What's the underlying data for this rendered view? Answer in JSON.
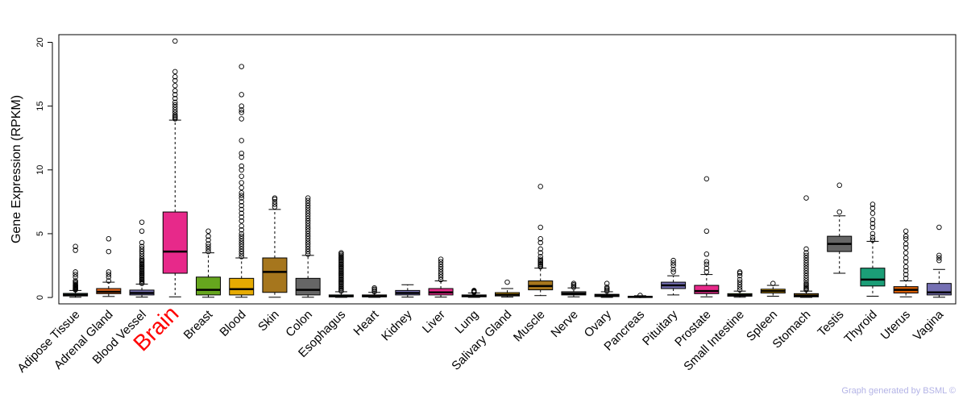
{
  "chart_data": {
    "type": "boxplot",
    "ylabel": "Gene Expression (RPKM)",
    "ylim": [
      -0.5,
      20.6
    ],
    "yticks": [
      0,
      5,
      10,
      15,
      20
    ],
    "highlight": "Brain",
    "highlight_color": "#ff0000",
    "credit": "Graph generated by BSML ©",
    "categories": [
      {
        "name": "Adipose Tissue",
        "color": "#66c2a5",
        "q1": 0.12,
        "median": 0.2,
        "q3": 0.32,
        "wlo": 0.02,
        "whi": 0.55,
        "outliers": [
          0.6,
          0.65,
          0.7,
          0.75,
          0.8,
          0.85,
          0.9,
          0.95,
          1.0,
          1.1,
          1.2,
          1.3,
          1.6,
          1.8,
          2.0,
          3.7,
          4.0
        ]
      },
      {
        "name": "Adrenal Gland",
        "color": "#e6661a",
        "q1": 0.3,
        "median": 0.45,
        "q3": 0.7,
        "wlo": 0.08,
        "whi": 1.2,
        "outliers": [
          1.3,
          1.6,
          1.8,
          2.0,
          3.6,
          4.6
        ]
      },
      {
        "name": "Blood Vessel",
        "color": "#7570b3",
        "q1": 0.2,
        "median": 0.35,
        "q3": 0.58,
        "wlo": 0.03,
        "whi": 1.05,
        "outliers": [
          1.1,
          1.2,
          1.3,
          1.4,
          1.5,
          1.6,
          1.7,
          1.8,
          1.9,
          2.0,
          2.1,
          2.2,
          2.3,
          2.4,
          2.5,
          2.6,
          2.7,
          2.8,
          2.9,
          3.0,
          3.2,
          3.4,
          3.6,
          3.8,
          4.0,
          4.3,
          5.2,
          5.9
        ]
      },
      {
        "name": "Brain",
        "color": "#e7298a",
        "q1": 1.9,
        "median": 3.6,
        "q3": 6.7,
        "wlo": 0.05,
        "whi": 13.9,
        "outliers": [
          14.0,
          14.1,
          14.2,
          14.3,
          14.5,
          14.7,
          14.9,
          15.1,
          15.3,
          15.6,
          15.9,
          16.2,
          16.6,
          17.0,
          17.3,
          17.7,
          20.1
        ]
      },
      {
        "name": "Breast",
        "color": "#66a61e",
        "q1": 0.2,
        "median": 0.6,
        "q3": 1.6,
        "wlo": 0.02,
        "whi": 3.5,
        "outliers": [
          3.6,
          3.8,
          4.0,
          4.2,
          4.5,
          4.8,
          5.2
        ]
      },
      {
        "name": "Blood",
        "color": "#e6ab02",
        "q1": 0.2,
        "median": 0.65,
        "q3": 1.5,
        "wlo": 0.02,
        "whi": 3.1,
        "outliers": [
          3.2,
          3.4,
          3.6,
          3.8,
          4.0,
          4.2,
          4.4,
          4.6,
          4.8,
          5.0,
          5.3,
          5.6,
          6.0,
          6.3,
          6.6,
          6.9,
          7.2,
          7.5,
          7.8,
          8.0,
          8.2,
          8.6,
          9.0,
          9.5,
          10.0,
          10.3,
          11.0,
          11.3,
          12.3,
          14.0,
          14.5,
          14.7,
          15.0,
          15.9,
          18.1
        ]
      },
      {
        "name": "Skin",
        "color": "#a6761d",
        "q1": 0.4,
        "median": 2.0,
        "q3": 3.1,
        "wlo": 0.02,
        "whi": 6.9,
        "outliers": [
          7.1,
          7.3,
          7.5,
          7.7,
          7.8
        ]
      },
      {
        "name": "Colon",
        "color": "#666666",
        "q1": 0.2,
        "median": 0.6,
        "q3": 1.5,
        "wlo": 0.02,
        "whi": 3.3,
        "outliers": [
          3.4,
          3.6,
          3.8,
          4.0,
          4.2,
          4.4,
          4.6,
          4.8,
          5.0,
          5.2,
          5.4,
          5.6,
          5.8,
          6.0,
          6.2,
          6.4,
          6.6,
          6.8,
          7.0,
          7.2,
          7.4,
          7.6,
          7.8
        ]
      },
      {
        "name": "Esophagus",
        "color": "#1b9e77",
        "q1": 0.05,
        "median": 0.1,
        "q3": 0.2,
        "wlo": 0.01,
        "whi": 0.45,
        "outliers": [
          0.5,
          0.6,
          0.7,
          0.8,
          0.9,
          1.0,
          1.1,
          1.2,
          1.3,
          1.4,
          1.5,
          1.6,
          1.7,
          1.8,
          1.9,
          2.0,
          2.1,
          2.2,
          2.3,
          2.4,
          2.5,
          2.6,
          2.7,
          2.8,
          2.9,
          3.0,
          3.1,
          3.2,
          3.3,
          3.4,
          3.5
        ]
      },
      {
        "name": "Heart",
        "color": "#d95f02",
        "q1": 0.05,
        "median": 0.1,
        "q3": 0.2,
        "wlo": 0.01,
        "whi": 0.4,
        "outliers": [
          0.45,
          0.55,
          0.65,
          0.75
        ]
      },
      {
        "name": "Kidney",
        "color": "#7570b3",
        "q1": 0.2,
        "median": 0.35,
        "q3": 0.55,
        "wlo": 0.03,
        "whi": 1.0,
        "outliers": []
      },
      {
        "name": "Liver",
        "color": "#e7298a",
        "q1": 0.2,
        "median": 0.4,
        "q3": 0.7,
        "wlo": 0.03,
        "whi": 1.3,
        "outliers": [
          1.4,
          1.6,
          1.8,
          2.0,
          2.2,
          2.4,
          2.6,
          2.8,
          3.0
        ]
      },
      {
        "name": "Lung",
        "color": "#66a61e",
        "q1": 0.05,
        "median": 0.12,
        "q3": 0.2,
        "wlo": 0.01,
        "whi": 0.35,
        "outliers": [
          0.4,
          0.45,
          0.5,
          0.55
        ]
      },
      {
        "name": "Salivary Gland",
        "color": "#e6ab02",
        "q1": 0.12,
        "median": 0.22,
        "q3": 0.38,
        "wlo": 0.03,
        "whi": 0.7,
        "outliers": [
          1.2
        ]
      },
      {
        "name": "Muscle",
        "color": "#a6761d",
        "q1": 0.6,
        "median": 0.9,
        "q3": 1.3,
        "wlo": 0.15,
        "whi": 2.3,
        "outliers": [
          2.4,
          2.5,
          2.6,
          2.7,
          2.8,
          2.9,
          3.0,
          3.2,
          3.5,
          3.8,
          4.3,
          4.6,
          5.5,
          8.7
        ]
      },
      {
        "name": "Nerve",
        "color": "#666666",
        "q1": 0.2,
        "median": 0.3,
        "q3": 0.45,
        "wlo": 0.05,
        "whi": 0.75,
        "outliers": [
          0.8,
          0.9,
          1.0,
          1.1
        ]
      },
      {
        "name": "Ovary",
        "color": "#1b9e77",
        "q1": 0.07,
        "median": 0.15,
        "q3": 0.25,
        "wlo": 0.01,
        "whi": 0.45,
        "outliers": [
          0.5,
          0.6,
          0.7,
          0.8,
          1.1
        ]
      },
      {
        "name": "Pancreas",
        "color": "#d95f02",
        "q1": 0.02,
        "median": 0.05,
        "q3": 0.09,
        "wlo": 0.0,
        "whi": 0.14,
        "outliers": [
          0.16
        ]
      },
      {
        "name": "Pituitary",
        "color": "#7570b3",
        "q1": 0.7,
        "median": 0.95,
        "q3": 1.2,
        "wlo": 0.2,
        "whi": 1.7,
        "outliers": [
          2.0,
          2.2,
          2.5,
          2.7,
          2.9
        ]
      },
      {
        "name": "Prostate",
        "color": "#e7298a",
        "q1": 0.3,
        "median": 0.5,
        "q3": 0.95,
        "wlo": 0.05,
        "whi": 1.8,
        "outliers": [
          2.0,
          2.3,
          2.6,
          2.8,
          3.4,
          5.2,
          9.3
        ]
      },
      {
        "name": "Small Intestine",
        "color": "#66a61e",
        "q1": 0.1,
        "median": 0.18,
        "q3": 0.3,
        "wlo": 0.02,
        "whi": 0.5,
        "outliers": [
          0.6,
          0.8,
          1.0,
          1.2,
          1.4,
          1.7,
          1.9,
          2.0
        ]
      },
      {
        "name": "Spleen",
        "color": "#e6ab02",
        "q1": 0.35,
        "median": 0.5,
        "q3": 0.65,
        "wlo": 0.1,
        "whi": 0.95,
        "outliers": [
          1.1
        ]
      },
      {
        "name": "Stomach",
        "color": "#a6761d",
        "q1": 0.05,
        "median": 0.15,
        "q3": 0.3,
        "wlo": 0.01,
        "whi": 0.5,
        "outliers": [
          0.6,
          0.7,
          0.8,
          0.9,
          1.0,
          1.1,
          1.3,
          1.5,
          1.7,
          1.9,
          2.1,
          2.3,
          2.5,
          2.7,
          2.9,
          3.1,
          3.3,
          3.5,
          3.8,
          7.8
        ]
      },
      {
        "name": "Testis",
        "color": "#666666",
        "q1": 3.6,
        "median": 4.2,
        "q3": 4.8,
        "wlo": 1.9,
        "whi": 6.4,
        "outliers": [
          6.7,
          8.8
        ]
      },
      {
        "name": "Thyroid",
        "color": "#1b9e77",
        "q1": 0.9,
        "median": 1.4,
        "q3": 2.3,
        "wlo": 0.1,
        "whi": 4.4,
        "outliers": [
          4.5,
          4.7,
          5.0,
          5.5,
          5.8,
          6.1,
          6.6,
          7.0,
          7.3
        ]
      },
      {
        "name": "Uterus",
        "color": "#d95f02",
        "q1": 0.35,
        "median": 0.6,
        "q3": 0.85,
        "wlo": 0.05,
        "whi": 1.3,
        "outliers": [
          1.5,
          1.8,
          2.1,
          2.4,
          2.8,
          3.1,
          3.5,
          3.9,
          4.2,
          4.6,
          4.8,
          5.2
        ]
      },
      {
        "name": "Vagina",
        "color": "#7570b3",
        "q1": 0.2,
        "median": 0.4,
        "q3": 1.1,
        "wlo": 0.02,
        "whi": 2.2,
        "outliers": [
          2.9,
          3.1,
          3.3,
          5.5
        ]
      }
    ]
  }
}
